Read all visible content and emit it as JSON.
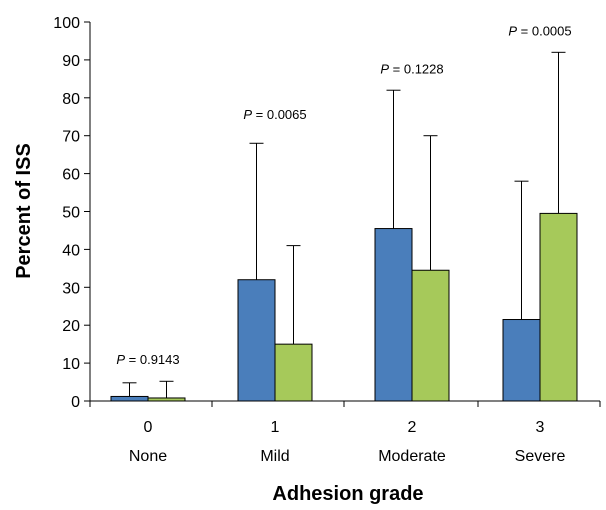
{
  "chart_data": {
    "type": "bar",
    "xlabel": "Adhesion grade",
    "ylabel": "Percent of ISS",
    "ylim": [
      0,
      100
    ],
    "yticks": [
      0,
      10,
      20,
      30,
      40,
      50,
      60,
      70,
      80,
      90,
      100
    ],
    "categories": [
      {
        "grade": "0",
        "name": "None"
      },
      {
        "grade": "1",
        "name": "Mild"
      },
      {
        "grade": "2",
        "name": "Moderate"
      },
      {
        "grade": "3",
        "name": "Severe"
      }
    ],
    "series": [
      {
        "color": "#4a7ebb",
        "values": [
          1.2,
          32.0,
          45.5,
          21.5
        ],
        "error_upper": [
          4.8,
          68,
          82,
          58
        ]
      },
      {
        "color": "#a6c95a",
        "values": [
          0.8,
          15.0,
          34.5,
          49.5
        ],
        "error_upper": [
          5.2,
          41,
          70,
          92
        ]
      }
    ],
    "annotations": [
      {
        "prefix": "P",
        "text": " = 0.9143",
        "category": 0,
        "y": 10.8
      },
      {
        "prefix": "P",
        "text": " = 0.0065",
        "category": 1,
        "y": 75.5
      },
      {
        "prefix": "P",
        "text": " = 0.1228",
        "category": 2,
        "y": 87.5
      },
      {
        "prefix": "P",
        "text": " = 0.0005",
        "category": 3,
        "y": 97.5
      }
    ],
    "grid": false
  }
}
